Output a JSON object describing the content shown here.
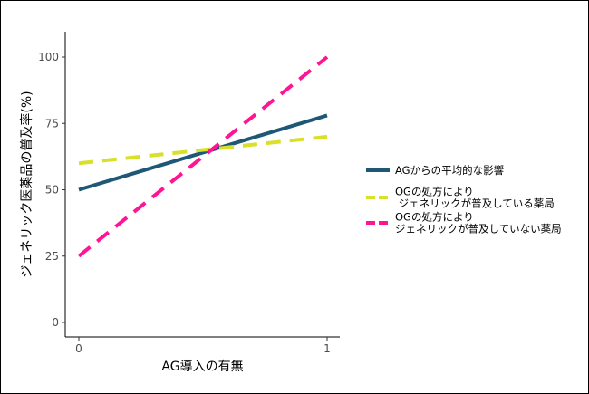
{
  "chart_data": {
    "type": "line",
    "xlabel": "AG導入の有無",
    "ylabel": "ジェネリック医薬品の普及率(%)",
    "x": [
      0,
      1
    ],
    "xticks": [
      "0",
      "1"
    ],
    "yticks": [
      0,
      25,
      50,
      75,
      100
    ],
    "ylim": [
      0,
      100
    ],
    "xlim": [
      0,
      1
    ],
    "grid": false,
    "legend_position": "right",
    "series": [
      {
        "name": "AGからの平均的な影響",
        "name_lines": [
          "AGからの平均的な影響"
        ],
        "values": [
          50,
          78
        ],
        "color": "#1f5777",
        "style": "solid"
      },
      {
        "name": "OGの処方により ジェネリックが普及している薬局",
        "name_lines": [
          "OGの処方により",
          " ジェネリックが普及している薬局"
        ],
        "values": [
          60,
          70
        ],
        "color": "#d8e02a",
        "style": "dashed"
      },
      {
        "name": "OGの処方により ジェネリックが普及していない薬局",
        "name_lines": [
          "OGの処方により",
          "ジェネリックが普及していない薬局"
        ],
        "values": [
          25,
          100
        ],
        "color": "#ff1493",
        "style": "dashed"
      }
    ]
  }
}
